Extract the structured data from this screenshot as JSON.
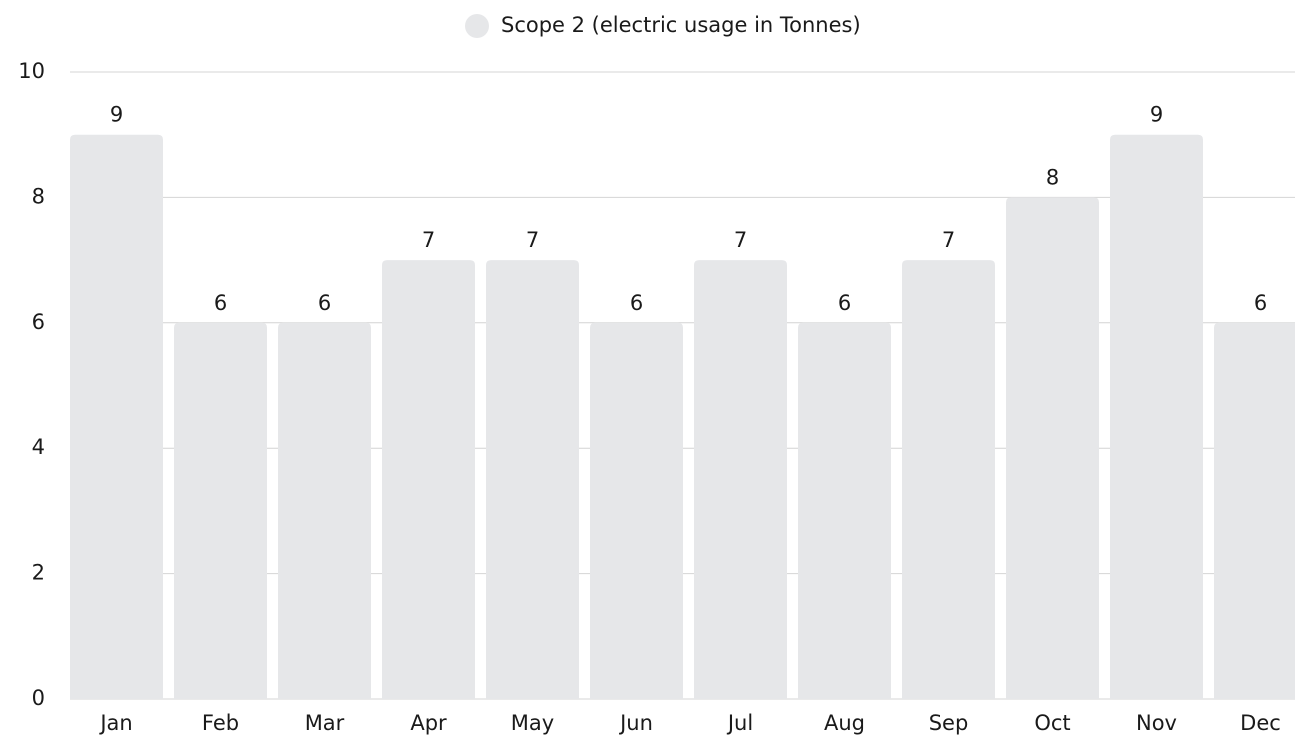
{
  "chart_data": {
    "type": "bar",
    "categories": [
      "Jan",
      "Feb",
      "Mar",
      "Apr",
      "May",
      "Jun",
      "Jul",
      "Aug",
      "Sep",
      "Oct",
      "Nov",
      "Dec"
    ],
    "series": [
      {
        "name": "Scope 2 (electric usage in Tonnes)",
        "color": "#e6e7e9",
        "values": [
          9,
          6,
          6,
          7,
          7,
          6,
          7,
          6,
          7,
          8,
          9,
          6
        ]
      }
    ],
    "ylim": [
      0,
      10
    ],
    "yticks": [
      0,
      2,
      4,
      6,
      8,
      10
    ],
    "grid": true,
    "legend": "top"
  }
}
